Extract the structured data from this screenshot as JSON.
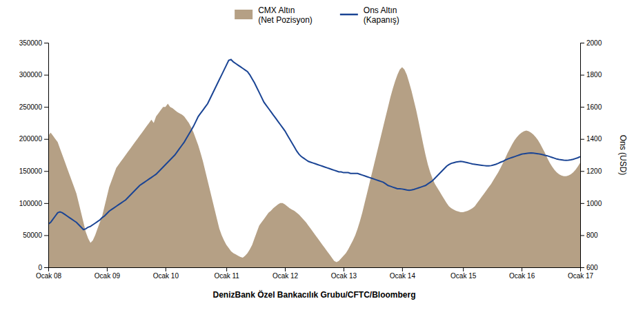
{
  "chart_data": {
    "type": "line",
    "xlabel": "DenizBank Özel Bankacılık Grubu/CFTC/Bloomberg",
    "y2label": "Ons (USD)",
    "legend": "top",
    "categories": [
      "Ocak 08",
      null,
      null,
      null,
      null,
      null,
      null,
      null,
      null,
      null,
      null,
      null,
      null,
      null,
      null,
      null,
      null,
      null,
      null,
      null,
      null,
      null,
      null,
      null,
      null,
      "Ocak 09",
      null,
      null,
      null,
      null,
      null,
      null,
      null,
      null,
      null,
      null,
      null,
      null,
      null,
      null,
      null,
      null,
      null,
      null,
      null,
      null,
      null,
      null,
      null,
      null,
      "Ocak 10",
      null,
      null,
      null,
      null,
      null,
      null,
      null,
      null,
      null,
      null,
      null,
      null,
      null,
      null,
      null,
      null,
      null,
      null,
      null,
      null,
      null,
      null,
      null,
      null,
      null,
      "Ocak 11",
      null,
      null,
      null,
      null,
      null,
      null,
      null,
      null,
      null,
      null,
      null,
      null,
      null,
      null,
      null,
      null,
      null,
      null,
      null,
      null,
      null,
      null,
      null,
      null,
      "Ocak 12",
      null,
      null,
      null,
      null,
      null,
      null,
      null,
      null,
      null,
      null,
      null,
      null,
      null,
      null,
      null,
      null,
      null,
      null,
      null,
      null,
      null,
      null,
      null,
      null,
      "Ocak 13",
      null,
      null,
      null,
      null,
      null,
      null,
      null,
      null,
      null,
      null,
      null,
      null,
      null,
      null,
      null,
      null,
      null,
      null,
      null,
      null,
      null,
      null,
      null,
      null,
      "Ocak 14",
      null,
      null,
      null,
      null,
      null,
      null,
      null,
      null,
      null,
      null,
      null,
      null,
      null,
      null,
      null,
      null,
      null,
      null,
      null,
      null,
      null,
      null,
      null,
      null,
      null,
      "Ocak 15",
      null,
      null,
      null,
      null,
      null,
      null,
      null,
      null,
      null,
      null,
      null,
      null,
      null,
      null,
      null,
      null,
      null,
      null,
      null,
      null,
      null,
      null,
      null,
      null,
      "Ocak 16",
      null,
      null,
      null,
      null,
      null,
      null,
      null,
      null,
      null,
      null,
      null,
      null,
      null,
      null,
      null,
      null,
      null,
      null,
      null,
      null,
      null,
      null,
      null,
      null,
      "Ocak 17"
    ],
    "ylim": [
      0,
      350000
    ],
    "yticks": [
      0,
      50000,
      100000,
      150000,
      200000,
      250000,
      300000,
      350000
    ],
    "y2lim": [
      600,
      2000
    ],
    "y2ticks": [
      600,
      800,
      1000,
      1200,
      1400,
      1600,
      1800,
      2000
    ],
    "series": [
      {
        "name": "CMX Altın\n(Net Pozisyon)",
        "type": "area",
        "color": "#b5a085",
        "values": [
          205000,
          210000,
          205000,
          200000,
          195000,
          185000,
          175000,
          165000,
          155000,
          145000,
          135000,
          125000,
          115000,
          100000,
          85000,
          70000,
          55000,
          45000,
          38000,
          42000,
          50000,
          60000,
          70000,
          80000,
          95000,
          110000,
          125000,
          135000,
          145000,
          155000,
          160000,
          165000,
          170000,
          175000,
          180000,
          185000,
          190000,
          195000,
          200000,
          205000,
          210000,
          215000,
          220000,
          225000,
          230000,
          225000,
          235000,
          240000,
          245000,
          250000,
          250000,
          255000,
          250000,
          248000,
          245000,
          242000,
          240000,
          238000,
          235000,
          230000,
          225000,
          218000,
          210000,
          200000,
          190000,
          178000,
          165000,
          150000,
          135000,
          120000,
          105000,
          90000,
          75000,
          60000,
          50000,
          42000,
          35000,
          30000,
          25000,
          22000,
          20000,
          18000,
          16000,
          15000,
          18000,
          22000,
          28000,
          35000,
          45000,
          55000,
          65000,
          70000,
          75000,
          80000,
          85000,
          88000,
          92000,
          95000,
          98000,
          100000,
          100000,
          98000,
          95000,
          92000,
          90000,
          88000,
          85000,
          82000,
          78000,
          74000,
          70000,
          65000,
          60000,
          55000,
          50000,
          45000,
          40000,
          35000,
          30000,
          25000,
          20000,
          15000,
          10000,
          8000,
          10000,
          14000,
          18000,
          22000,
          28000,
          35000,
          42000,
          50000,
          60000,
          72000,
          85000,
          100000,
          115000,
          130000,
          145000,
          160000,
          175000,
          190000,
          205000,
          220000,
          235000,
          250000,
          265000,
          278000,
          290000,
          300000,
          308000,
          312000,
          308000,
          300000,
          288000,
          275000,
          260000,
          245000,
          228000,
          210000,
          192000,
          175000,
          160000,
          148000,
          138000,
          130000,
          124000,
          118000,
          112000,
          106000,
          100000,
          95000,
          92000,
          90000,
          88000,
          87000,
          86000,
          86000,
          87000,
          88000,
          90000,
          92000,
          95000,
          100000,
          105000,
          110000,
          115000,
          120000,
          125000,
          130000,
          136000,
          142000,
          148000,
          155000,
          162000,
          170000,
          178000,
          185000,
          192000,
          198000,
          203000,
          207000,
          210000,
          212000,
          213000,
          212000,
          210000,
          207000,
          203000,
          198000,
          192000,
          185000,
          178000,
          170000,
          163000,
          157000,
          152000,
          148000,
          145000,
          143000,
          142000,
          142000,
          143000,
          145000,
          148000,
          152000,
          157000,
          163000
        ]
      },
      {
        "name": "Ons Altın\n(Kapanış)",
        "type": "line",
        "axis": "y2",
        "color": "#1a4494",
        "values": [
          870,
          880,
          900,
          920,
          940,
          945,
          940,
          930,
          920,
          910,
          900,
          890,
          880,
          865,
          850,
          835,
          840,
          850,
          855,
          865,
          875,
          885,
          895,
          910,
          920,
          935,
          950,
          960,
          970,
          980,
          990,
          1000,
          1010,
          1020,
          1035,
          1050,
          1065,
          1080,
          1095,
          1110,
          1120,
          1130,
          1140,
          1150,
          1160,
          1170,
          1180,
          1195,
          1210,
          1225,
          1240,
          1255,
          1270,
          1285,
          1300,
          1320,
          1340,
          1360,
          1380,
          1405,
          1430,
          1455,
          1480,
          1510,
          1540,
          1560,
          1580,
          1600,
          1620,
          1650,
          1680,
          1710,
          1740,
          1770,
          1800,
          1830,
          1860,
          1890,
          1895,
          1880,
          1870,
          1860,
          1850,
          1840,
          1830,
          1820,
          1800,
          1775,
          1750,
          1720,
          1690,
          1660,
          1630,
          1610,
          1590,
          1570,
          1550,
          1530,
          1510,
          1490,
          1470,
          1450,
          1425,
          1400,
          1375,
          1350,
          1325,
          1305,
          1290,
          1280,
          1270,
          1260,
          1255,
          1250,
          1245,
          1240,
          1235,
          1230,
          1225,
          1220,
          1215,
          1210,
          1205,
          1200,
          1195,
          1195,
          1190,
          1190,
          1190,
          1185,
          1185,
          1185,
          1185,
          1180,
          1175,
          1170,
          1165,
          1160,
          1155,
          1150,
          1145,
          1140,
          1135,
          1130,
          1120,
          1110,
          1105,
          1100,
          1095,
          1090,
          1090,
          1088,
          1085,
          1082,
          1080,
          1082,
          1085,
          1090,
          1095,
          1100,
          1105,
          1110,
          1120,
          1130,
          1140,
          1155,
          1170,
          1185,
          1200,
          1215,
          1230,
          1240,
          1248,
          1252,
          1256,
          1258,
          1260,
          1258,
          1255,
          1252,
          1248,
          1244,
          1242,
          1240,
          1238,
          1236,
          1234,
          1232,
          1232,
          1234,
          1238,
          1242,
          1248,
          1255,
          1260,
          1268,
          1275,
          1280,
          1285,
          1290,
          1295,
          1300,
          1305,
          1308,
          1310,
          1312,
          1313,
          1312,
          1310,
          1308,
          1305,
          1302,
          1298,
          1295,
          1290,
          1285,
          1280,
          1275,
          1272,
          1270,
          1268,
          1267,
          1268,
          1270,
          1273,
          1278,
          1283,
          1290
        ]
      }
    ]
  }
}
